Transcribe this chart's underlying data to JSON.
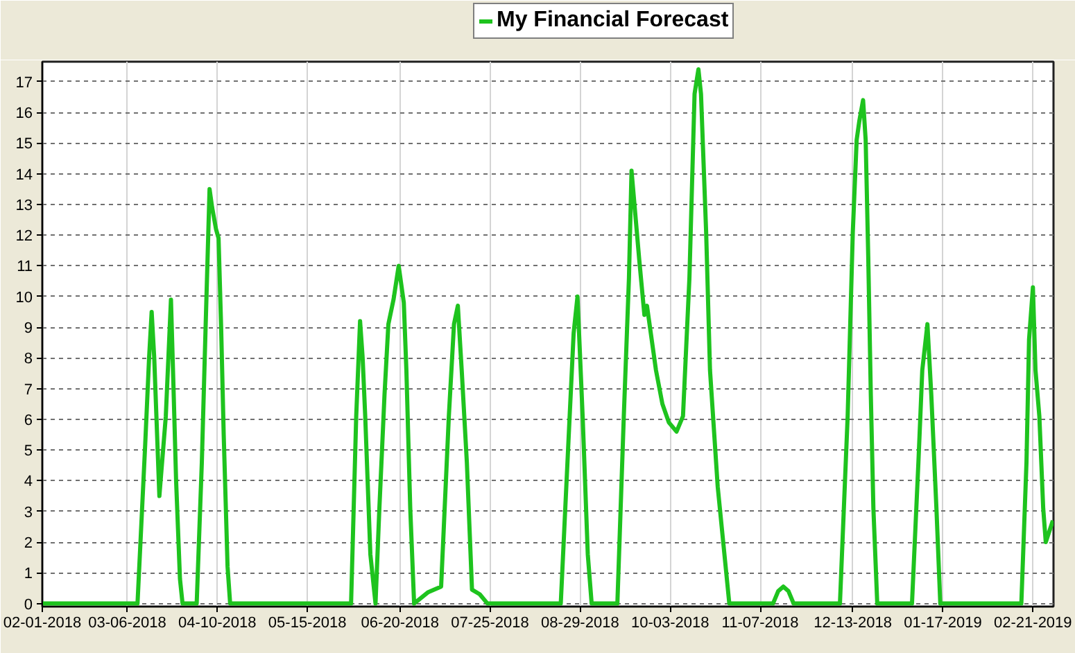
{
  "chart_data": {
    "type": "line",
    "x": [
      "2018-02-01",
      "2018-03-10",
      "2018-03-13",
      "2018-03-14T12:00",
      "2018-03-15T12:00",
      "2018-03-16T12:00",
      "2018-03-18T12:00",
      "2018-03-21",
      "2018-03-23",
      "2018-03-24",
      "2018-03-25",
      "2018-03-26T12:00",
      "2018-03-27T12:00",
      "2018-04-02",
      "2018-04-04",
      "2018-04-05T12:00",
      "2018-04-07",
      "2018-04-08",
      "2018-04-09T12:00",
      "2018-04-10T12:00",
      "2018-04-11T12:00",
      "2018-04-12T12:00",
      "2018-04-14",
      "2018-04-15",
      "2018-06-01",
      "2018-06-03",
      "2018-06-04T12:00",
      "2018-06-05T12:00",
      "2018-06-06T12:00",
      "2018-06-08T12:00",
      "2018-06-10T12:00",
      "2018-06-12",
      "2018-06-14",
      "2018-06-15T12:00",
      "2018-06-17T12:00",
      "2018-06-19T12:00",
      "2018-06-21T12:00",
      "2018-06-22T12:00",
      "2018-06-24",
      "2018-06-25T12:00",
      "2018-07-01",
      "2018-07-06",
      "2018-07-09",
      "2018-07-11",
      "2018-07-12T12:00",
      "2018-07-14",
      "2018-07-16",
      "2018-07-18",
      "2018-07-21",
      "2018-07-24",
      "2018-08-21T12:00",
      "2018-08-24T12:00",
      "2018-08-26T12:00",
      "2018-08-28",
      "2018-08-30",
      "2018-09-01",
      "2018-09-02T12:00",
      "2018-09-12T12:00",
      "2018-09-15",
      "2018-09-17",
      "2018-09-18",
      "2018-09-21",
      "2018-09-23",
      "2018-09-24",
      "2018-09-27T12:00",
      "2018-09-30",
      "2018-10-02T12:00",
      "2018-10-05T12:00",
      "2018-10-08",
      "2018-10-10T12:00",
      "2018-10-12T12:00",
      "2018-10-14",
      "2018-10-15",
      "2018-10-17",
      "2018-10-18T12:00",
      "2018-10-21T12:00",
      "2018-10-26",
      "2018-11-12",
      "2018-11-14",
      "2018-11-16",
      "2018-11-18",
      "2018-11-20",
      "2018-12-08",
      "2018-12-11",
      "2018-12-13",
      "2018-12-14T12:00",
      "2018-12-15T12:00",
      "2018-12-17",
      "2018-12-18",
      "2018-12-19",
      "2018-12-20",
      "2018-12-21",
      "2018-12-22T12:00",
      "2019-01-05",
      "2019-01-07T12:00",
      "2019-01-09",
      "2019-01-11",
      "2019-01-12T12:00",
      "2019-01-14T12:00",
      "2019-01-16",
      "2019-02-16T12:00",
      "2019-02-18T12:00",
      "2019-02-19T12:00",
      "2019-02-21",
      "2019-02-22",
      "2019-02-23T12:00",
      "2019-02-25",
      "2019-02-26",
      "2019-02-28T18:00"
    ],
    "series": [
      {
        "name": "My Financial Forecast",
        "color": "#1ec31e",
        "values": [
          0,
          0,
          5.2,
          8.0,
          9.5,
          8.0,
          3.5,
          6.1,
          9.9,
          7.0,
          4.0,
          0.8,
          0,
          0,
          4.6,
          9.1,
          13.5,
          12.9,
          12.2,
          11.9,
          9.0,
          5.5,
          1.2,
          0,
          0,
          6.1,
          9.2,
          8.0,
          6.1,
          1.6,
          0,
          3.1,
          6.8,
          9.1,
          9.9,
          11.0,
          9.8,
          7.6,
          3.1,
          0,
          0.37,
          0.55,
          6.1,
          9.1,
          9.7,
          7.6,
          4.6,
          0.45,
          0.3,
          0,
          0,
          5.3,
          8.8,
          10.0,
          6.1,
          1.6,
          0,
          0,
          6.1,
          10.6,
          14.1,
          11.2,
          9.4,
          9.7,
          7.6,
          6.5,
          5.9,
          5.6,
          6.1,
          10.6,
          16.6,
          17.4,
          16.6,
          12.1,
          7.6,
          3.8,
          0,
          0,
          0.4,
          0.55,
          0.4,
          0,
          0,
          6.1,
          12.1,
          15.1,
          15.7,
          16.4,
          15.1,
          11.3,
          6.8,
          3.1,
          0,
          0,
          4.6,
          7.6,
          9.1,
          6.8,
          3.1,
          0,
          0,
          4.6,
          8.6,
          10.3,
          7.6,
          6.1,
          3.1,
          2.0,
          2.7
        ]
      }
    ],
    "xlim": [
      "2018-02-01",
      "2019-03-01"
    ],
    "ylim": [
      -0.1,
      17.65
    ],
    "xticks": [
      {
        "value": "2018-02-01",
        "label": "02-01-2018"
      },
      {
        "value": "2018-03-06",
        "label": "03-06-2018"
      },
      {
        "value": "2018-04-10",
        "label": "04-10-2018"
      },
      {
        "value": "2018-05-15",
        "label": "05-15-2018"
      },
      {
        "value": "2018-06-20",
        "label": "06-20-2018"
      },
      {
        "value": "2018-07-25",
        "label": "07-25-2018"
      },
      {
        "value": "2018-08-29",
        "label": "08-29-2018"
      },
      {
        "value": "2018-10-03",
        "label": "10-03-2018"
      },
      {
        "value": "2018-11-07",
        "label": "11-07-2018"
      },
      {
        "value": "2018-12-13",
        "label": "12-13-2018"
      },
      {
        "value": "2019-01-17",
        "label": "01-17-2019"
      },
      {
        "value": "2019-02-21",
        "label": "02-21-2019"
      }
    ],
    "yticks": [
      0,
      1,
      2,
      3,
      4,
      5,
      6,
      7,
      8,
      9,
      10,
      11,
      12,
      13,
      14,
      15,
      16,
      17
    ],
    "grid": true,
    "legend": "top",
    "line_style": "solid"
  }
}
